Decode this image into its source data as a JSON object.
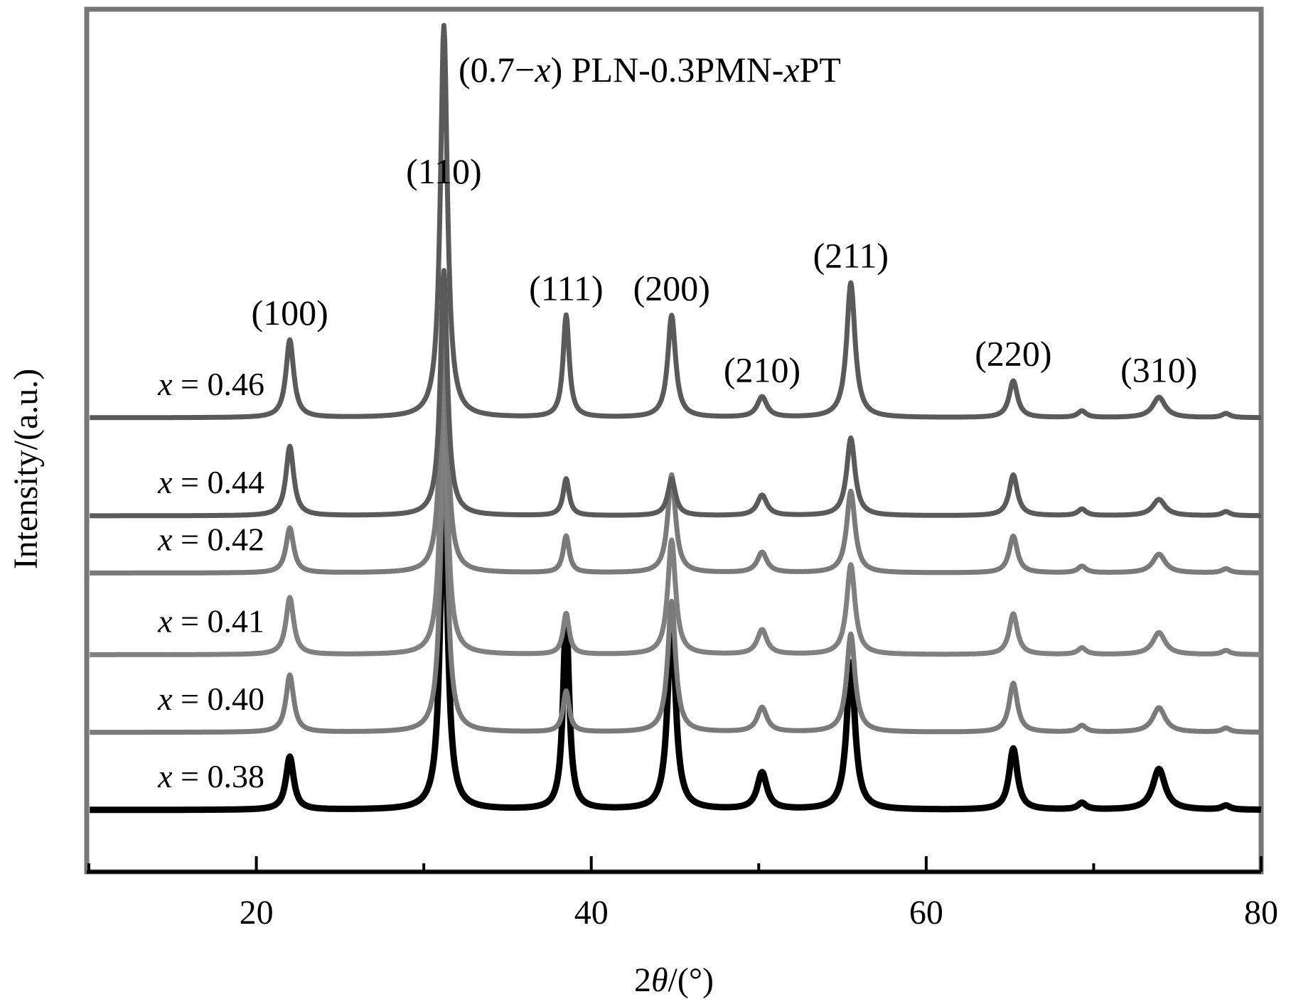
{
  "chart_data": {
    "type": "line",
    "title_parts": [
      "(0.7−",
      "x",
      ") PLN-0.3PMN-",
      "x",
      "PT"
    ],
    "xlabel_parts": [
      "2",
      "θ",
      "/(°)"
    ],
    "ylabel": "Intensity/(a.u.)",
    "xlim": [
      10,
      80
    ],
    "x_ticks": [
      20,
      40,
      60,
      80
    ],
    "x_minor_ticks": [
      10,
      30,
      50,
      70
    ],
    "y_ticks_shown": false,
    "grid": false,
    "peaks": [
      {
        "hkl": "(100)",
        "two_theta": 22.0,
        "height": 1.0,
        "width": 0.28
      },
      {
        "hkl": "(110)",
        "two_theta": 31.2,
        "height": 6.0,
        "width": 0.25
      },
      {
        "hkl": "(111)",
        "two_theta": 38.5,
        "height": 1.0,
        "width": 0.22
      },
      {
        "hkl": "(200)",
        "two_theta": 44.8,
        "height": 1.25,
        "width": 0.28
      },
      {
        "hkl": "(210)",
        "two_theta": 50.2,
        "height": 0.22,
        "width": 0.35
      },
      {
        "hkl": "(211)",
        "two_theta": 55.5,
        "height": 2.4,
        "width": 0.3
      },
      {
        "hkl": "(220)",
        "two_theta": 65.2,
        "height": 0.35,
        "width": 0.3
      },
      {
        "hkl": "(310)",
        "two_theta": 73.9,
        "height": 0.25,
        "width": 0.45
      }
    ],
    "minor_peaks": [
      {
        "two_theta": 69.3,
        "height": 0.08,
        "width": 0.3
      },
      {
        "two_theta": 77.9,
        "height": 0.05,
        "width": 0.3
      }
    ],
    "series": [
      {
        "name_var": "x",
        "name_value": "= 0.38",
        "x_value": 0.38,
        "baseline": 0.0,
        "peak_heights": {
          "(100)": 0.65,
          "(110)": 4.2,
          "(111)": 2.38,
          "(200)": 2.38,
          "(210)": 0.45,
          "(211)": 1.8,
          "(220)": 0.75,
          "(310)": 0.5
        }
      },
      {
        "name_var": "x",
        "name_value": "= 0.40",
        "x_value": 0.4,
        "baseline": 0.95,
        "peak_heights": {
          "(100)": 0.7,
          "(110)": 3.6,
          "(111)": 0.5,
          "(200)": 1.6,
          "(210)": 0.3,
          "(211)": 1.2,
          "(220)": 0.6,
          "(310)": 0.3
        }
      },
      {
        "name_var": "x",
        "name_value": "= 0.41",
        "x_value": 0.41,
        "baseline": 1.9,
        "peak_heights": {
          "(100)": 0.7,
          "(110)": 3.4,
          "(111)": 0.5,
          "(200)": 1.4,
          "(210)": 0.3,
          "(211)": 1.1,
          "(220)": 0.5,
          "(310)": 0.27
        }
      },
      {
        "name_var": "x",
        "name_value": "= 0.42",
        "x_value": 0.42,
        "baseline": 2.9,
        "peak_heights": {
          "(100)": 0.55,
          "(110)": 3.2,
          "(111)": 0.45,
          "(200)": 1.2,
          "(210)": 0.25,
          "(211)": 1.0,
          "(220)": 0.45,
          "(310)": 0.23
        }
      },
      {
        "name_var": "x",
        "name_value": "= 0.44",
        "x_value": 0.44,
        "baseline": 3.6,
        "peak_heights": {
          "(100)": 0.85,
          "(110)": 3.0,
          "(111)": 0.45,
          "(200)": 0.45,
          "(210)": 0.25,
          "(211)": 0.95,
          "(220)": 0.5,
          "(310)": 0.2
        }
      },
      {
        "name_var": "x",
        "name_value": "= 0.46",
        "x_value": 0.46,
        "baseline": 4.8,
        "peak_heights": {
          "(100)": 0.95,
          "(110)": 4.8,
          "(111)": 1.25,
          "(200)": 1.25,
          "(210)": 0.25,
          "(211)": 1.65,
          "(220)": 0.45,
          "(310)": 0.25
        }
      }
    ]
  }
}
